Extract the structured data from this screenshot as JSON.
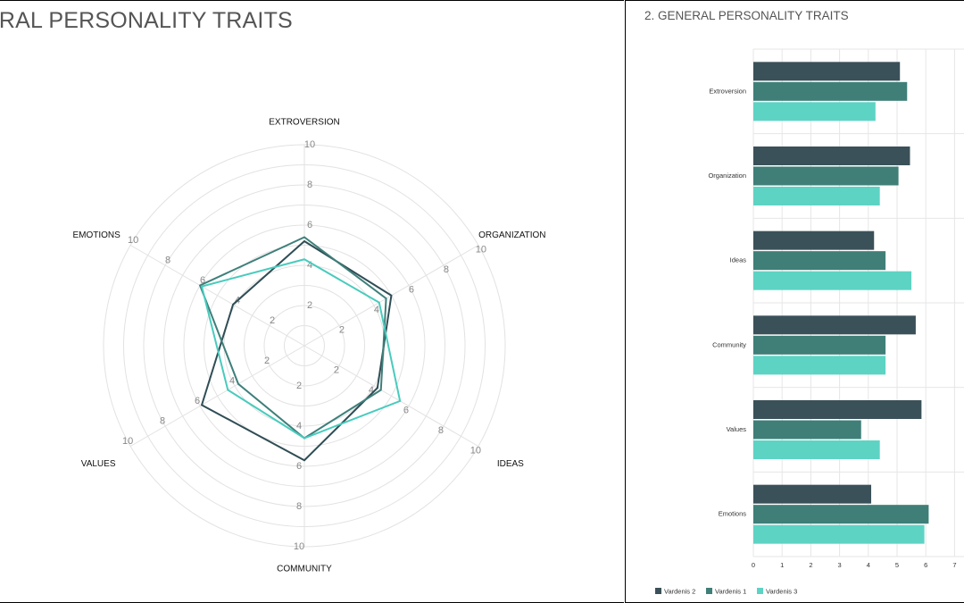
{
  "panels": {
    "left": {
      "title": "ERAL PERSONALITY TRAITS"
    },
    "right": {
      "title": "2. GENERAL PERSONALITY TRAITS"
    }
  },
  "chart_data": [
    {
      "type": "radar",
      "axes": [
        "EXTROVERSION",
        "ORGANIZATION",
        "IDEAS",
        "COMMUNITY",
        "VALUES",
        "EMOTIONS"
      ],
      "ticks": [
        "2",
        "4",
        "6",
        "8",
        "10"
      ],
      "rlim": [
        0,
        10
      ],
      "grid": true,
      "series": [
        {
          "values": [
            5.2,
            5.0,
            4.2,
            5.7,
            5.9,
            4.1
          ],
          "color": "#2f4d55"
        },
        {
          "values": [
            5.4,
            4.7,
            4.4,
            4.6,
            3.8,
            6.0
          ],
          "color": "#3e7f7a"
        },
        {
          "values": [
            4.3,
            4.3,
            5.5,
            4.6,
            4.4,
            5.9
          ],
          "color": "#48cbbd"
        }
      ]
    },
    {
      "type": "bar",
      "orientation": "horizontal",
      "categories": [
        "Extroversion",
        "Organization",
        "Ideas",
        "Community",
        "Values",
        "Emotions"
      ],
      "xticks": [
        "0",
        "1",
        "2",
        "3",
        "4",
        "5",
        "6",
        "7"
      ],
      "xlim": [
        0,
        7.2
      ],
      "grid": true,
      "legend_placement": "bottom-left",
      "series": [
        {
          "name": "Vardenis 2",
          "values": [
            5.1,
            5.45,
            4.2,
            5.65,
            5.85,
            4.1
          ],
          "color": "#3b5159"
        },
        {
          "name": "Vardenis 1",
          "values": [
            5.35,
            5.05,
            4.6,
            4.6,
            3.75,
            6.1
          ],
          "color": "#3f7f78"
        },
        {
          "name": "Vardenis 3",
          "values": [
            4.25,
            4.4,
            5.5,
            4.6,
            4.4,
            5.95
          ],
          "color": "#5dd3c4"
        }
      ]
    }
  ]
}
